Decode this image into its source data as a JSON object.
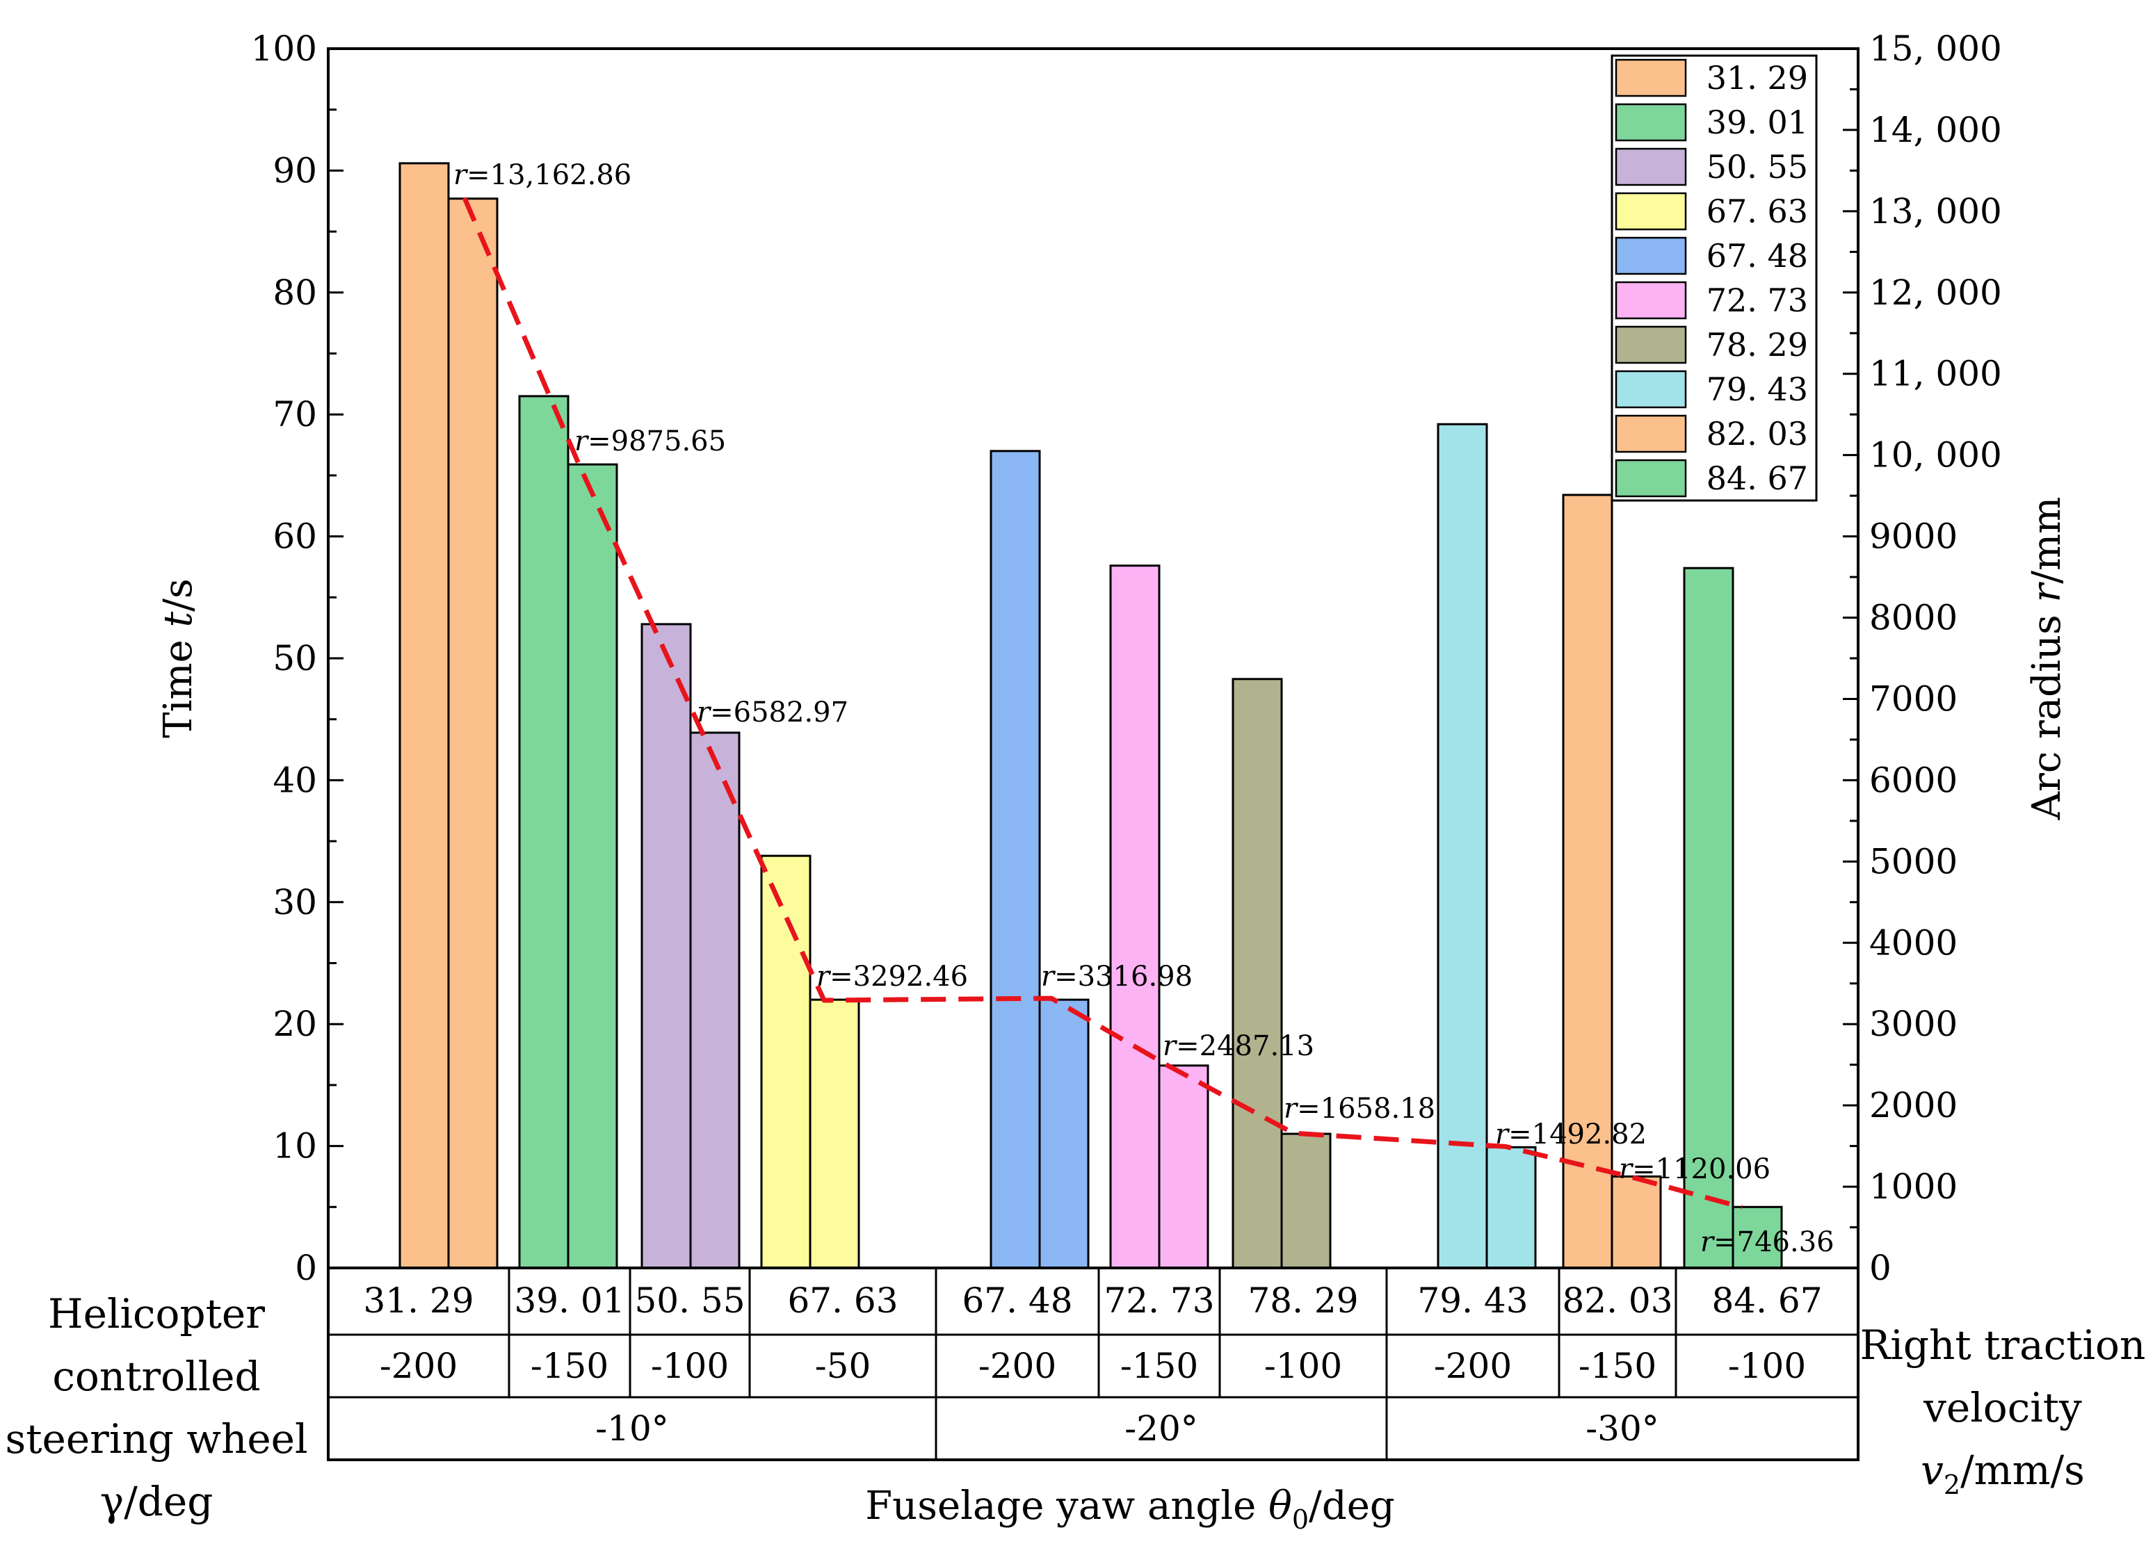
{
  "chart_data": {
    "type": "bar",
    "title": "",
    "left_axis": {
      "label_prefix": "Time",
      "label_var": "t",
      "label_unit": "/s",
      "ylim": [
        0,
        100
      ],
      "ticks": [
        "0",
        "10",
        "20",
        "30",
        "40",
        "50",
        "60",
        "70",
        "80",
        "90",
        "100"
      ]
    },
    "right_axis": {
      "label_prefix": "Arc radius",
      "label_var": "r",
      "label_unit": "/mm",
      "ylim": [
        0,
        15000
      ],
      "ticks": [
        "0",
        "1000",
        "2000",
        "3000",
        "4000",
        "5000",
        "6000",
        "7000",
        "8000",
        "9000",
        "10, 000",
        "11, 000",
        "12, 000",
        "13, 000",
        "14, 000",
        "15, 000"
      ]
    },
    "groups": [
      {
        "gamma": "31. 29",
        "velocity": "-200",
        "yaw": "-10°",
        "t_values": [
          90.6,
          87.7
        ],
        "color": "#fbc08c",
        "r": 13162.86,
        "r_label": "=13,162.86"
      },
      {
        "gamma": "39. 01",
        "velocity": "-150",
        "yaw": "-10°",
        "t_values": [
          71.5,
          65.9
        ],
        "color": "#7dd69a",
        "r": 9875.65,
        "r_label": "=9875.65"
      },
      {
        "gamma": "50. 55",
        "velocity": "-100",
        "yaw": "-10°",
        "t_values": [
          52.8,
          43.9
        ],
        "color": "#c7b3d9",
        "r": 6582.97,
        "r_label": "=6582.97"
      },
      {
        "gamma": "67. 63",
        "velocity": "-50",
        "yaw": "-10°",
        "t_values": [
          33.8,
          22.0
        ],
        "color": "#fdfc9d",
        "r": 3292.46,
        "r_label": "=3292.46"
      },
      {
        "gamma": "67. 48",
        "velocity": "-200",
        "yaw": "-20°",
        "t_values": [
          67.0,
          22.0
        ],
        "color": "#8bb6f4",
        "r": 3316.98,
        "r_label": "=3316.98"
      },
      {
        "gamma": "72. 73",
        "velocity": "-150",
        "yaw": "-20°",
        "t_values": [
          57.6,
          16.6
        ],
        "color": "#fcb3f4",
        "r": 2487.13,
        "r_label": "=2487.13"
      },
      {
        "gamma": "78. 29",
        "velocity": "-100",
        "yaw": "-20°",
        "t_values": [
          48.3,
          11.0
        ],
        "color": "#b1b38f",
        "r": 1658.18,
        "r_label": "=1658.18"
      },
      {
        "gamma": "79. 43",
        "velocity": "-200",
        "yaw": "-30°",
        "t_values": [
          69.2,
          9.9
        ],
        "color": "#a2e3ea",
        "r": 1492.82,
        "r_label": "=1492.82"
      },
      {
        "gamma": "82. 03",
        "velocity": "-150",
        "yaw": "-30°",
        "t_values": [
          63.4,
          7.5
        ],
        "color": "#fbc08c",
        "r": 1120.06,
        "r_label": "=1120.06"
      },
      {
        "gamma": "84. 67",
        "velocity": "-100",
        "yaw": "-30°",
        "t_values": [
          57.4,
          5.0
        ],
        "color": "#7dd69a",
        "r": 746.36,
        "r_label": "=746.36"
      }
    ],
    "r_symbol": "r",
    "line_color": "#e8141b",
    "legend": [
      {
        "label": "31. 29",
        "color": "#fbc08c"
      },
      {
        "label": "39. 01",
        "color": "#7dd69a"
      },
      {
        "label": "50. 55",
        "color": "#c7b3d9"
      },
      {
        "label": "67. 63",
        "color": "#fdfc9d"
      },
      {
        "label": "67. 48",
        "color": "#8bb6f4"
      },
      {
        "label": "72. 73",
        "color": "#fcb3f4"
      },
      {
        "label": "78. 29",
        "color": "#b1b38f"
      },
      {
        "label": "79. 43",
        "color": "#a2e3ea"
      },
      {
        "label": "82. 03",
        "color": "#fbc08c"
      },
      {
        "label": "84. 67",
        "color": "#7dd69a"
      }
    ],
    "table": {
      "velocity_spans": [
        {
          "label": "-200",
          "from": 0,
          "to": 0
        },
        {
          "label": "-150",
          "from": 1,
          "to": 1
        },
        {
          "label": "-100",
          "from": 2,
          "to": 2
        },
        {
          "label": "-50",
          "from": 3,
          "to": 3
        },
        {
          "label": "-200",
          "from": 4,
          "to": 4
        },
        {
          "label": "-150",
          "from": 5,
          "to": 5
        },
        {
          "label": "-100",
          "from": 6,
          "to": 6
        },
        {
          "label": "-200",
          "from": 7,
          "to": 7
        },
        {
          "label": "-150",
          "from": 8,
          "to": 8
        },
        {
          "label": "-100",
          "from": 9,
          "to": 9
        }
      ],
      "yaw_spans": [
        {
          "label": "-10°",
          "from": 0,
          "to": 3
        },
        {
          "label": "-20°",
          "from": 4,
          "to": 6
        },
        {
          "label": "-30°",
          "from": 7,
          "to": 9
        }
      ]
    },
    "left_table_label": [
      "Helicopter",
      "controlled",
      "steering wheel",
      "γ/deg"
    ],
    "right_table_label": [
      "Right traction",
      "velocity"
    ],
    "right_table_label_var": "v",
    "right_table_label_sub": "2",
    "right_table_label_unit": "/mm/s",
    "xlabel_prefix": "Fuselage yaw angle",
    "xlabel_var": "θ",
    "xlabel_sub": "0",
    "xlabel_unit": "/deg"
  }
}
